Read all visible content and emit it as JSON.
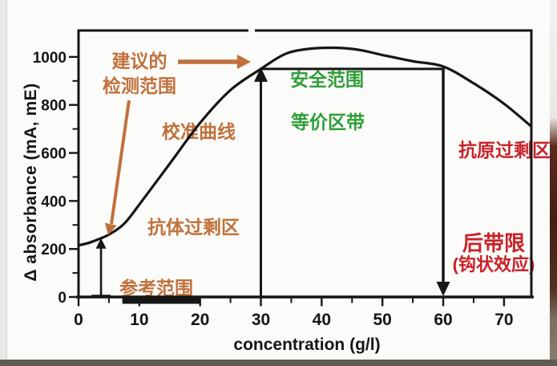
{
  "chart_data": {
    "type": "line",
    "title": "",
    "xlabel": "concentration (g/l)",
    "ylabel": "Δ absorbance (mA, mE)",
    "xlim": [
      0,
      74.5
    ],
    "ylim": [
      0,
      1110
    ],
    "x_major_ticks": [
      0,
      10,
      20,
      30,
      40,
      50,
      60,
      70
    ],
    "x_minor_ticks": [
      5,
      15,
      25,
      35,
      45,
      55,
      65
    ],
    "y_major_ticks": [
      0,
      200,
      400,
      600,
      800,
      1000
    ],
    "y_minor_ticks": [
      100,
      300,
      500,
      700,
      900
    ],
    "grid": false,
    "legend": "none",
    "curve": {
      "name": "calibration-curve",
      "x": [
        0,
        2,
        5,
        7.5,
        10,
        15,
        20,
        25,
        30,
        34,
        38,
        42,
        46,
        50,
        55,
        60,
        65,
        70,
        74.5
      ],
      "y": [
        215,
        228,
        260,
        305,
        385,
        555,
        725,
        862,
        950,
        1012,
        1034,
        1038,
        1030,
        1008,
        982,
        960,
        890,
        805,
        710
      ]
    },
    "annotations": {
      "safe_range": {
        "x_start": 30,
        "x_end": 60,
        "y_level": 950
      },
      "reference_range_bar": {
        "x_start": 7.2,
        "x_end": 19.9
      },
      "sample_measure_arrow": {
        "x": 3.7,
        "y_top": 245
      },
      "hook_limit_x": 60
    },
    "labels": {
      "recommended_range_line1": "建议的",
      "recommended_range_line2": "检测范围",
      "calibration_curve": "校准曲线",
      "antibody_excess_zone": "抗体过剩区",
      "reference_range": "参考范围",
      "safe_range": "安全范围",
      "equivalence_zone": "等价区带",
      "antigen_excess_zone": "抗原过剩区",
      "hook_limit_line1": "后带限",
      "hook_limit_line2": "(钩状效应)"
    },
    "colors": {
      "curve": "#161616",
      "orange_annotation": "#c0713c",
      "green_annotation": "#2f9e38",
      "red_annotation": "#ca2128"
    }
  }
}
